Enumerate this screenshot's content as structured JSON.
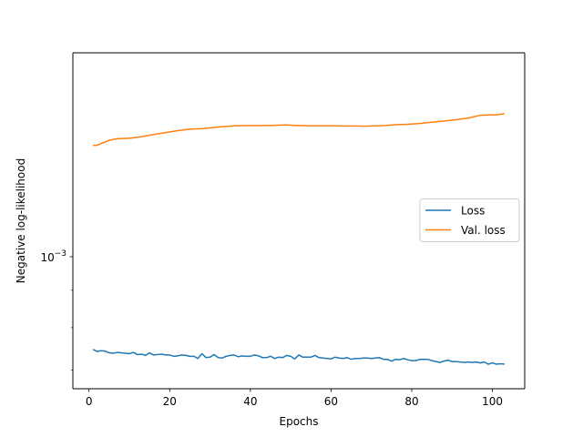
{
  "chart_data": {
    "type": "line",
    "title": "",
    "xlabel": "Epochs",
    "ylabel": "Negative log-likelihood",
    "yscale": "log",
    "xlim": [
      -4,
      108
    ],
    "ylim": [
      0.00066,
      0.0019
    ],
    "xticks": [
      0,
      20,
      40,
      60,
      80,
      100
    ],
    "yticks": [
      {
        "value": 0.001,
        "label_base": "10",
        "label_exp": "−3"
      }
    ],
    "grid": false,
    "legend_position": "center-right",
    "series": [
      {
        "name": "Loss",
        "color": "#1f77b4",
        "x": [
          1,
          2,
          3,
          4,
          5,
          6,
          7,
          8,
          9,
          10,
          11,
          12,
          13,
          14,
          15,
          16,
          17,
          18,
          19,
          20,
          21,
          22,
          23,
          24,
          25,
          26,
          27,
          28,
          29,
          30,
          31,
          32,
          33,
          34,
          35,
          36,
          37,
          38,
          39,
          40,
          41,
          42,
          43,
          44,
          45,
          46,
          47,
          48,
          49,
          50,
          51,
          52,
          53,
          54,
          55,
          56,
          57,
          58,
          59,
          60,
          61,
          62,
          63,
          64,
          65,
          66,
          67,
          68,
          69,
          70,
          71,
          72,
          73,
          74,
          75,
          76,
          77,
          78,
          79,
          80,
          81,
          82,
          83,
          84,
          85,
          86,
          87,
          88,
          89,
          90,
          91,
          92,
          93,
          94,
          95,
          96,
          97,
          98,
          99,
          100,
          101,
          102,
          103
        ],
        "y": [
          0.000747,
          0.000742,
          0.000744,
          0.000743,
          0.000739,
          0.000738,
          0.00074,
          0.000739,
          0.000738,
          0.000737,
          0.00074,
          0.000735,
          0.000736,
          0.000733,
          0.000739,
          0.000734,
          0.000735,
          0.000736,
          0.000734,
          0.000734,
          0.000731,
          0.000732,
          0.000734,
          0.000733,
          0.000731,
          0.000731,
          0.000726,
          0.000737,
          0.000728,
          0.000729,
          0.000735,
          0.000728,
          0.000727,
          0.000731,
          0.000733,
          0.000734,
          0.00073,
          0.000732,
          0.000731,
          0.000731,
          0.000734,
          0.000732,
          0.000728,
          0.000728,
          0.000731,
          0.000726,
          0.000729,
          0.000728,
          0.000733,
          0.000731,
          0.000725,
          0.000734,
          0.000729,
          0.000729,
          0.000729,
          0.000733,
          0.000728,
          0.000727,
          0.000726,
          0.000725,
          0.000729,
          0.000727,
          0.000726,
          0.000728,
          0.000724,
          0.000726,
          0.000726,
          0.000727,
          0.000727,
          0.000726,
          0.000727,
          0.000728,
          0.000724,
          0.000724,
          0.00072,
          0.000724,
          0.000723,
          0.000726,
          0.000723,
          0.000721,
          0.000721,
          0.000724,
          0.000724,
          0.000724,
          0.000721,
          0.000719,
          0.000717,
          0.00072,
          0.000722,
          0.000719,
          0.000719,
          0.000718,
          0.000717,
          0.000718,
          0.000717,
          0.000718,
          0.000716,
          0.000718,
          0.000713,
          0.000716,
          0.000713,
          0.000714,
          0.000713
        ]
      },
      {
        "name": "Val. loss",
        "color": "#ff7f0e",
        "x": [
          1,
          2,
          3,
          5,
          7,
          10,
          13,
          16,
          19,
          22,
          25,
          28,
          30,
          33,
          36,
          39,
          42,
          45,
          47,
          49,
          51,
          54,
          57,
          60,
          63,
          66,
          68,
          70,
          73,
          76,
          79,
          82,
          85,
          88,
          91,
          94,
          97,
          100,
          101,
          103
        ],
        "y": [
          0.00142,
          0.00142,
          0.001428,
          0.001443,
          0.00145,
          0.001452,
          0.001459,
          0.001469,
          0.001478,
          0.001487,
          0.001494,
          0.001497,
          0.0015,
          0.001506,
          0.00151,
          0.001511,
          0.001511,
          0.001512,
          0.001513,
          0.001514,
          0.001512,
          0.00151,
          0.00151,
          0.00151,
          0.001509,
          0.001509,
          0.001508,
          0.001509,
          0.001511,
          0.001515,
          0.001517,
          0.001521,
          0.001527,
          0.001533,
          0.001539,
          0.001547,
          0.001561,
          0.001563,
          0.001563,
          0.001568
        ]
      }
    ]
  }
}
